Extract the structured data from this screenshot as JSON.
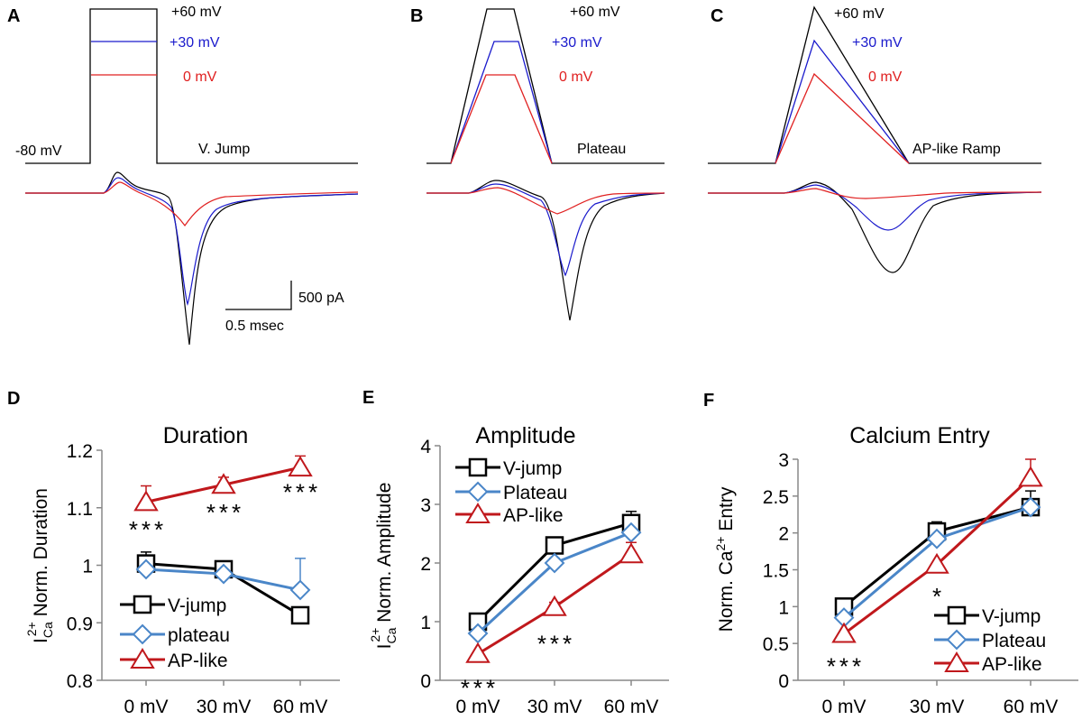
{
  "top_panels": [
    {
      "letter": "A",
      "protocol_label": "V. Jump",
      "holding_label": "-80 mV",
      "scale_current": "500 pA",
      "scale_time": "0.5 msec",
      "levels": [
        {
          "label": "+60 mV",
          "color": "#000000"
        },
        {
          "label": "+30 mV",
          "color": "#1a1acc"
        },
        {
          "label": "0 mV",
          "color": "#e02020"
        }
      ]
    },
    {
      "letter": "B",
      "protocol_label": "Plateau",
      "levels": [
        {
          "label": "+60 mV",
          "color": "#000000"
        },
        {
          "label": "+30 mV",
          "color": "#1a1acc"
        },
        {
          "label": "0 mV",
          "color": "#e02020"
        }
      ]
    },
    {
      "letter": "C",
      "protocol_label": "AP-like Ramp",
      "levels": [
        {
          "label": "+60 mV",
          "color": "#000000"
        },
        {
          "label": "+30 mV",
          "color": "#1a1acc"
        },
        {
          "label": "0 mV",
          "color": "#e02020"
        }
      ]
    }
  ],
  "chart_data": [
    {
      "letter": "D",
      "type": "line",
      "title": "Duration",
      "ylabel": {
        "main": "I",
        "sub": "Ca",
        "sup": "2+",
        "rest": " Norm. Duration"
      },
      "categories": [
        "0 mV",
        "30 mV",
        "60 mV"
      ],
      "ylim": [
        0.8,
        1.2
      ],
      "yticks": [
        "0.8",
        "0.9",
        "1",
        "1.1",
        "1.2"
      ],
      "ytick_values": [
        0.8,
        0.9,
        1.0,
        1.1,
        1.2
      ],
      "legend_placement": "bottom-left",
      "series": [
        {
          "name": "V-jump",
          "marker": "square",
          "color": "#000000",
          "values": [
            1.003,
            0.993,
            0.913
          ],
          "errors": [
            0.02,
            0.005,
            0
          ]
        },
        {
          "name": "plateau",
          "marker": "diamond",
          "color": "#4a86c8",
          "values": [
            0.993,
            0.985,
            0.957
          ],
          "errors": [
            0,
            0,
            0.055
          ]
        },
        {
          "name": "AP-like",
          "marker": "triangle",
          "color": "#c0181c",
          "values": [
            1.11,
            1.14,
            1.17
          ],
          "errors": [
            0.028,
            0.013,
            0.02
          ]
        }
      ],
      "annotations": [
        {
          "text": "***",
          "category": "0 mV",
          "y": 1.07
        },
        {
          "text": "***",
          "category": "30 mV",
          "y": 1.1
        },
        {
          "text": "***",
          "category": "60 mV",
          "y": 1.135
        }
      ]
    },
    {
      "letter": "E",
      "type": "line",
      "title": "Amplitude",
      "ylabel": {
        "main": "I",
        "sub": "Ca",
        "sup": "2+",
        "rest": " Norm. Amplitude"
      },
      "categories": [
        "0 mV",
        "30 mV",
        "60 mV"
      ],
      "ylim": [
        0,
        4
      ],
      "yticks": [
        "0",
        "1",
        "2",
        "3",
        "4"
      ],
      "ytick_values": [
        0,
        1,
        2,
        3,
        4
      ],
      "legend_placement": "top-left",
      "series": [
        {
          "name": "V-jump",
          "marker": "square",
          "color": "#000000",
          "values": [
            1.0,
            2.3,
            2.68
          ],
          "errors": [
            0,
            0,
            0.2
          ]
        },
        {
          "name": "Plateau",
          "marker": "diamond",
          "color": "#4a86c8",
          "values": [
            0.8,
            2.0,
            2.52
          ],
          "errors": [
            0,
            0.08,
            0
          ]
        },
        {
          "name": "AP-like",
          "marker": "triangle",
          "color": "#c0181c",
          "values": [
            0.45,
            1.25,
            2.15
          ],
          "errors": [
            0,
            0.08,
            0.2
          ]
        }
      ],
      "annotations": [
        {
          "text": "***",
          "category": "0 mV",
          "y": -0.05
        },
        {
          "text": "***",
          "category": "30 mV",
          "y": 0.7
        }
      ]
    },
    {
      "letter": "F",
      "type": "line",
      "title": "Calcium Entry",
      "ylabel": {
        "main": "Norm.  Ca",
        "sub": "",
        "sup": "2+",
        "rest": " Entry"
      },
      "categories": [
        "0 mV",
        "30 mV",
        "60 mV"
      ],
      "ylim": [
        0,
        3
      ],
      "yticks": [
        "0",
        "0.5",
        "1",
        "1.5",
        "2",
        "2.5",
        "3"
      ],
      "ytick_values": [
        0,
        0.5,
        1,
        1.5,
        2,
        2.5,
        3
      ],
      "legend_placement": "bottom-right",
      "series": [
        {
          "name": "V-jump",
          "marker": "square",
          "color": "#000000",
          "values": [
            1.0,
            2.02,
            2.35
          ],
          "errors": [
            0,
            0.13,
            0.22
          ]
        },
        {
          "name": "Plateau",
          "marker": "diamond",
          "color": "#4a86c8",
          "values": [
            0.85,
            1.92,
            2.35
          ],
          "errors": [
            0,
            0,
            0
          ]
        },
        {
          "name": "AP-like",
          "marker": "triangle",
          "color": "#c0181c",
          "values": [
            0.63,
            1.57,
            2.75
          ],
          "errors": [
            0,
            0,
            0.25
          ]
        }
      ],
      "annotations": [
        {
          "text": "***",
          "category": "0 mV",
          "y": 0.25
        },
        {
          "text": "*",
          "category": "30 mV",
          "y": 1.2
        }
      ]
    }
  ]
}
